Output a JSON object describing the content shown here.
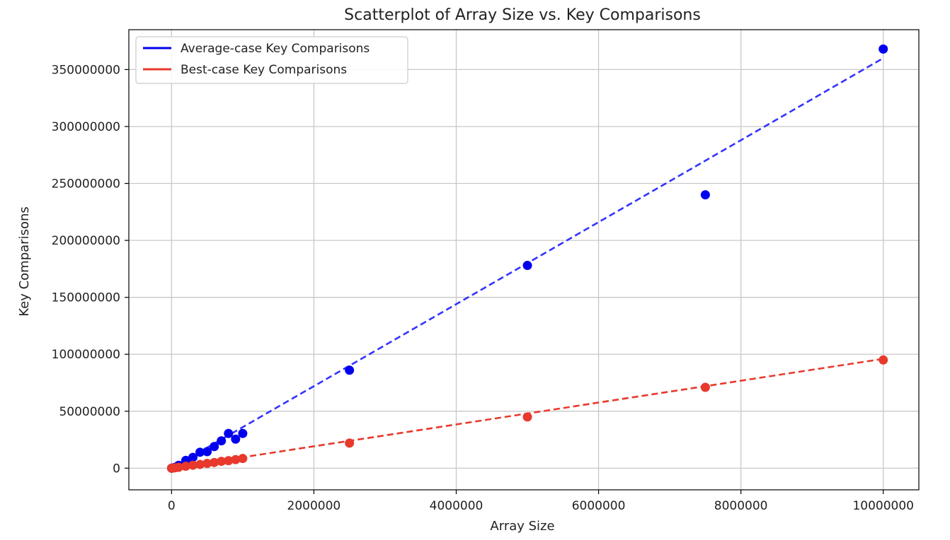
{
  "chart_data": {
    "type": "scatter",
    "title": "Scatterplot of Array Size vs. Key Comparisons",
    "xlabel": "Array Size",
    "ylabel": "Key Comparisons",
    "xlim": [
      -600000,
      10500000
    ],
    "ylim": [
      -19000000,
      385000000
    ],
    "xticks": [
      0,
      2000000,
      4000000,
      6000000,
      8000000,
      10000000
    ],
    "xtick_labels": [
      "0",
      "2000000",
      "4000000",
      "6000000",
      "8000000",
      "10000000"
    ],
    "yticks": [
      0,
      50000000,
      100000000,
      150000000,
      200000000,
      250000000,
      300000000,
      350000000
    ],
    "ytick_labels": [
      "0",
      "50000000",
      "100000000",
      "150000000",
      "200000000",
      "250000000",
      "300000000",
      "350000000"
    ],
    "grid": true,
    "legend_position": "top-left",
    "series": [
      {
        "name": "Average-case Key Comparisons",
        "color": "#0000ee",
        "trend_color": "#3333ff",
        "x": [
          1000,
          10000,
          50000,
          100000,
          200000,
          300000,
          400000,
          500000,
          600000,
          700000,
          800000,
          900000,
          1000000,
          2500000,
          5000000,
          7500000,
          10000000
        ],
        "y": [
          10000,
          130000,
          800000,
          2500000,
          6800000,
          9500000,
          14000000,
          14500000,
          19000000,
          24000000,
          30500000,
          25500000,
          30500000,
          86000000,
          178000000,
          240000000,
          368000000
        ],
        "trend": {
          "x": [
            0,
            10000000
          ],
          "y": [
            0,
            360000000
          ]
        }
      },
      {
        "name": "Best-case Key Comparisons",
        "color": "#e8392c",
        "trend_color": "#e8392c",
        "x": [
          1000,
          10000,
          50000,
          100000,
          200000,
          300000,
          400000,
          500000,
          600000,
          700000,
          800000,
          900000,
          1000000,
          2500000,
          5000000,
          7500000,
          10000000
        ],
        "y": [
          5000,
          60000,
          350000,
          800000,
          1700000,
          2600000,
          3300000,
          4200000,
          5000000,
          6000000,
          6600000,
          7500000,
          8500000,
          22000000,
          45000000,
          71000000,
          95000000
        ],
        "trend": {
          "x": [
            0,
            10000000
          ],
          "y": [
            0,
            96000000
          ]
        }
      }
    ]
  }
}
